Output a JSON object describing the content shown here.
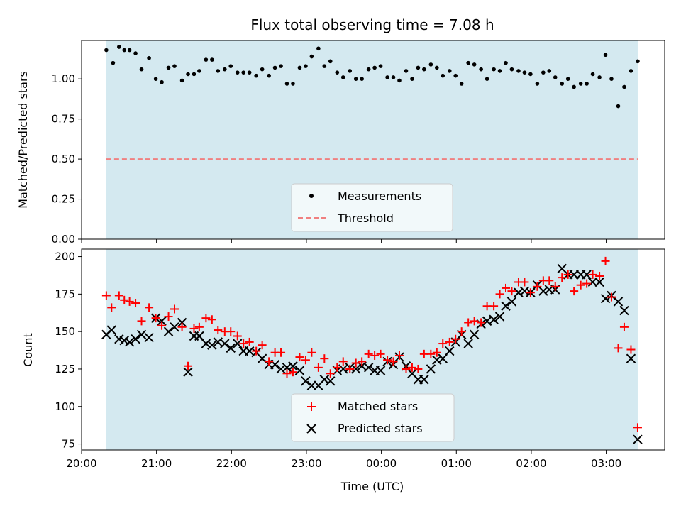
{
  "chart_data": [
    {
      "type": "scatter",
      "title": "Flux total observing time = 7.08 h",
      "xlabel": "",
      "ylabel": "Matched/Predicted stars",
      "ylim": [
        0,
        1.24
      ],
      "yticks": [
        "0.00",
        "0.25",
        "0.50",
        "0.75",
        "1.00"
      ],
      "shaded_span_hours": [
        20.33,
        27.42
      ],
      "shade_color": "#d4e9f0",
      "threshold": 0.5,
      "series": [
        {
          "name": "Measurements",
          "color": "#000000",
          "marker": "dot",
          "x": [
            20.33,
            20.42,
            20.5,
            20.57,
            20.64,
            20.72,
            20.8,
            20.9,
            20.99,
            21.07,
            21.16,
            21.24,
            21.34,
            21.42,
            21.5,
            21.57,
            21.66,
            21.74,
            21.82,
            21.91,
            21.99,
            22.08,
            22.16,
            22.24,
            22.33,
            22.41,
            22.5,
            22.58,
            22.66,
            22.74,
            22.82,
            22.91,
            22.99,
            23.07,
            23.16,
            23.24,
            23.32,
            23.41,
            23.49,
            23.58,
            23.66,
            23.74,
            23.83,
            23.91,
            23.99,
            24.08,
            24.16,
            24.24,
            24.33,
            24.41,
            24.49,
            24.57,
            24.66,
            24.74,
            24.82,
            24.91,
            24.99,
            25.07,
            25.16,
            25.24,
            25.33,
            25.41,
            25.5,
            25.58,
            25.66,
            25.74,
            25.83,
            25.91,
            25.99,
            26.08,
            26.16,
            26.24,
            26.32,
            26.41,
            26.49,
            26.57,
            26.66,
            26.74,
            26.82,
            26.91,
            26.99,
            27.07,
            27.16,
            27.24,
            27.33,
            27.42
          ],
          "y": [
            1.18,
            1.1,
            1.2,
            1.18,
            1.18,
            1.16,
            1.06,
            1.13,
            1.0,
            0.98,
            1.07,
            1.08,
            0.99,
            1.03,
            1.03,
            1.05,
            1.12,
            1.12,
            1.05,
            1.06,
            1.08,
            1.04,
            1.04,
            1.04,
            1.02,
            1.06,
            1.02,
            1.07,
            1.08,
            0.97,
            0.97,
            1.07,
            1.08,
            1.14,
            1.19,
            1.08,
            1.11,
            1.04,
            1.01,
            1.05,
            1.0,
            1.0,
            1.06,
            1.07,
            1.08,
            1.01,
            1.01,
            0.99,
            1.05,
            1.0,
            1.07,
            1.06,
            1.09,
            1.07,
            1.02,
            1.05,
            1.02,
            0.97,
            1.1,
            1.09,
            1.06,
            1.0,
            1.06,
            1.05,
            1.1,
            1.06,
            1.05,
            1.04,
            1.03,
            0.97,
            1.04,
            1.05,
            1.01,
            0.97,
            1.0,
            0.95,
            0.97,
            0.97,
            1.03,
            1.01,
            1.15,
            1.0,
            0.83,
            0.95,
            1.05,
            1.11
          ]
        },
        {
          "name": "Threshold",
          "color": "#f08080",
          "style": "dashed"
        }
      ]
    },
    {
      "type": "scatter",
      "title": "",
      "xlabel": "Time (UTC)",
      "ylabel": "Count",
      "ylim": [
        71,
        205
      ],
      "yticks": [
        "75",
        "100",
        "125",
        "150",
        "175",
        "200"
      ],
      "xlim_hours": [
        20.0,
        27.78
      ],
      "xticks": [
        {
          "h": 20,
          "label": "20:00"
        },
        {
          "h": 21,
          "label": "21:00"
        },
        {
          "h": 22,
          "label": "22:00"
        },
        {
          "h": 23,
          "label": "23:00"
        },
        {
          "h": 24,
          "label": "00:00"
        },
        {
          "h": 25,
          "label": "01:00"
        },
        {
          "h": 26,
          "label": "02:00"
        },
        {
          "h": 27,
          "label": "03:00"
        }
      ],
      "series": [
        {
          "name": "Matched stars",
          "color": "#ff0000",
          "marker": "plus",
          "x": [
            20.33,
            20.4,
            20.5,
            20.57,
            20.64,
            20.72,
            20.8,
            20.9,
            20.99,
            21.07,
            21.16,
            21.24,
            21.34,
            21.42,
            21.5,
            21.57,
            21.66,
            21.74,
            21.82,
            21.91,
            21.99,
            22.08,
            22.16,
            22.24,
            22.33,
            22.41,
            22.5,
            22.58,
            22.66,
            22.74,
            22.82,
            22.91,
            22.99,
            23.07,
            23.16,
            23.24,
            23.32,
            23.41,
            23.49,
            23.58,
            23.66,
            23.74,
            23.83,
            23.91,
            23.99,
            24.08,
            24.16,
            24.24,
            24.33,
            24.41,
            24.49,
            24.57,
            24.66,
            24.74,
            24.82,
            24.91,
            24.99,
            25.07,
            25.16,
            25.24,
            25.33,
            25.41,
            25.5,
            25.58,
            25.66,
            25.74,
            25.83,
            25.91,
            25.99,
            26.08,
            26.16,
            26.24,
            26.32,
            26.41,
            26.49,
            26.57,
            26.66,
            26.74,
            26.82,
            26.91,
            26.99,
            27.07,
            27.16,
            27.24,
            27.33,
            27.42
          ],
          "y": [
            174,
            166,
            174,
            171,
            170,
            169,
            157,
            166,
            159,
            154,
            160,
            165,
            153,
            127,
            152,
            153,
            159,
            158,
            151,
            150,
            150,
            147,
            142,
            143,
            137,
            141,
            130,
            136,
            136,
            122,
            123,
            133,
            131,
            136,
            126,
            132,
            122,
            126,
            130,
            125,
            129,
            130,
            135,
            134,
            135,
            131,
            130,
            134,
            125,
            126,
            125,
            135,
            135,
            136,
            142,
            143,
            145,
            150,
            156,
            157,
            156,
            167,
            167,
            175,
            179,
            177,
            183,
            183,
            176,
            180,
            184,
            184,
            180,
            186,
            188,
            177,
            181,
            182,
            188,
            187,
            197,
            173,
            139,
            153,
            138,
            86
          ]
        },
        {
          "name": "Predicted stars",
          "color": "#000000",
          "marker": "x",
          "x": [
            20.33,
            20.4,
            20.5,
            20.57,
            20.64,
            20.72,
            20.8,
            20.9,
            20.99,
            21.07,
            21.16,
            21.24,
            21.34,
            21.42,
            21.5,
            21.57,
            21.66,
            21.74,
            21.82,
            21.91,
            21.99,
            22.08,
            22.16,
            22.24,
            22.33,
            22.41,
            22.5,
            22.58,
            22.66,
            22.74,
            22.82,
            22.91,
            22.99,
            23.07,
            23.16,
            23.24,
            23.32,
            23.41,
            23.49,
            23.58,
            23.66,
            23.74,
            23.83,
            23.91,
            23.99,
            24.08,
            24.16,
            24.24,
            24.33,
            24.41,
            24.49,
            24.57,
            24.66,
            24.74,
            24.82,
            24.91,
            24.99,
            25.07,
            25.16,
            25.24,
            25.33,
            25.41,
            25.5,
            25.58,
            25.66,
            25.74,
            25.83,
            25.91,
            25.99,
            26.08,
            26.16,
            26.24,
            26.32,
            26.41,
            26.49,
            26.57,
            26.66,
            26.74,
            26.82,
            26.91,
            26.99,
            27.07,
            27.16,
            27.24,
            27.33,
            27.42
          ],
          "y": [
            148,
            151,
            145,
            144,
            143,
            145,
            148,
            146,
            159,
            157,
            150,
            153,
            156,
            123,
            147,
            147,
            142,
            141,
            143,
            142,
            139,
            142,
            137,
            137,
            136,
            132,
            128,
            128,
            125,
            126,
            127,
            124,
            117,
            114,
            114,
            118,
            117,
            124,
            125,
            126,
            125,
            127,
            126,
            124,
            124,
            130,
            128,
            133,
            127,
            122,
            118,
            118,
            125,
            131,
            132,
            137,
            143,
            148,
            142,
            148,
            155,
            157,
            158,
            160,
            167,
            170,
            176,
            177,
            176,
            181,
            177,
            178,
            178,
            192,
            188,
            188,
            188,
            188,
            183,
            183,
            172,
            174,
            170,
            164,
            132,
            78
          ]
        }
      ]
    }
  ]
}
